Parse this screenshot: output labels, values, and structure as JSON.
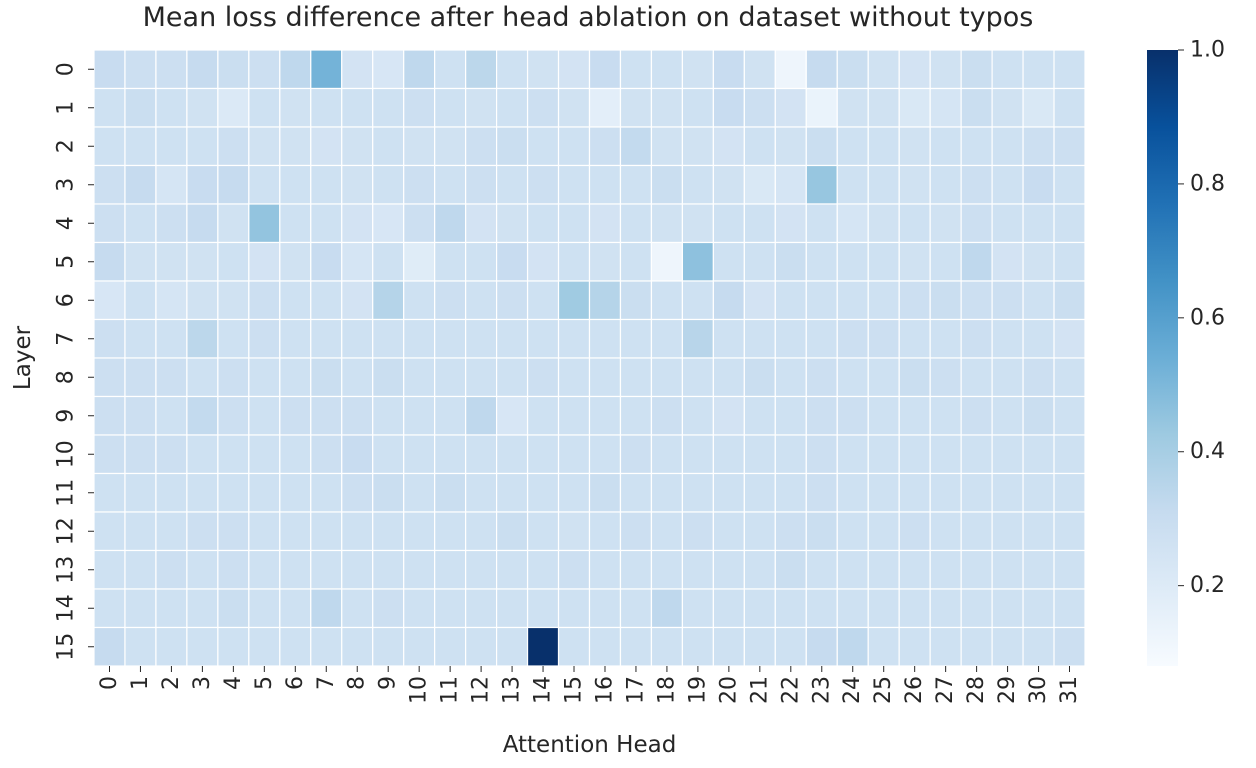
{
  "chart_data": {
    "type": "heatmap",
    "title": "Mean loss difference after head ablation on dataset without typos",
    "xlabel": "Attention Head",
    "ylabel": "Layer",
    "x_categories": [
      "0",
      "1",
      "2",
      "3",
      "4",
      "5",
      "6",
      "7",
      "8",
      "9",
      "10",
      "11",
      "12",
      "13",
      "14",
      "15",
      "16",
      "17",
      "18",
      "19",
      "20",
      "21",
      "22",
      "23",
      "24",
      "25",
      "26",
      "27",
      "28",
      "29",
      "30",
      "31"
    ],
    "y_categories": [
      "0",
      "1",
      "2",
      "3",
      "4",
      "5",
      "6",
      "7",
      "8",
      "9",
      "10",
      "11",
      "12",
      "13",
      "14",
      "15"
    ],
    "colormap": "Blues",
    "colors": [
      "#f7fbff",
      "#deebf7",
      "#c6dbef",
      "#9ecae1",
      "#6baed6",
      "#4292c6",
      "#2171b5",
      "#08519c",
      "#08306b"
    ],
    "vmin": 0.08,
    "vmax": 1.0,
    "colorbar_ticks": [
      "0.2",
      "0.4",
      "0.6",
      "0.8",
      "1.0"
    ],
    "colorbar_tick_values": [
      0.2,
      0.4,
      0.6,
      0.8,
      1.0
    ],
    "values": [
      [
        0.3,
        0.28,
        0.28,
        0.31,
        0.29,
        0.28,
        0.33,
        0.52,
        0.25,
        0.23,
        0.33,
        0.27,
        0.34,
        0.27,
        0.26,
        0.25,
        0.3,
        0.27,
        0.27,
        0.26,
        0.3,
        0.26,
        0.12,
        0.31,
        0.29,
        0.26,
        0.25,
        0.26,
        0.29,
        0.27,
        0.27,
        0.27
      ],
      [
        0.27,
        0.29,
        0.27,
        0.26,
        0.21,
        0.27,
        0.26,
        0.27,
        0.27,
        0.27,
        0.28,
        0.27,
        0.26,
        0.27,
        0.28,
        0.26,
        0.17,
        0.26,
        0.26,
        0.27,
        0.3,
        0.28,
        0.25,
        0.14,
        0.26,
        0.26,
        0.22,
        0.24,
        0.29,
        0.26,
        0.22,
        0.27
      ],
      [
        0.27,
        0.27,
        0.27,
        0.27,
        0.28,
        0.26,
        0.26,
        0.25,
        0.26,
        0.27,
        0.26,
        0.26,
        0.28,
        0.29,
        0.27,
        0.27,
        0.28,
        0.32,
        0.26,
        0.26,
        0.25,
        0.27,
        0.26,
        0.29,
        0.27,
        0.27,
        0.26,
        0.27,
        0.27,
        0.27,
        0.28,
        0.28
      ],
      [
        0.28,
        0.31,
        0.24,
        0.3,
        0.31,
        0.27,
        0.27,
        0.27,
        0.26,
        0.27,
        0.28,
        0.27,
        0.28,
        0.27,
        0.28,
        0.27,
        0.27,
        0.27,
        0.29,
        0.27,
        0.26,
        0.22,
        0.24,
        0.44,
        0.27,
        0.27,
        0.26,
        0.27,
        0.28,
        0.27,
        0.3,
        0.27
      ],
      [
        0.28,
        0.27,
        0.28,
        0.31,
        0.26,
        0.45,
        0.27,
        0.27,
        0.25,
        0.23,
        0.28,
        0.33,
        0.25,
        0.26,
        0.27,
        0.27,
        0.25,
        0.27,
        0.26,
        0.26,
        0.27,
        0.27,
        0.25,
        0.27,
        0.24,
        0.26,
        0.27,
        0.26,
        0.28,
        0.27,
        0.27,
        0.27
      ],
      [
        0.31,
        0.26,
        0.26,
        0.26,
        0.27,
        0.25,
        0.26,
        0.3,
        0.24,
        0.27,
        0.19,
        0.27,
        0.27,
        0.3,
        0.25,
        0.27,
        0.26,
        0.27,
        0.12,
        0.46,
        0.27,
        0.27,
        0.29,
        0.27,
        0.27,
        0.27,
        0.26,
        0.27,
        0.33,
        0.25,
        0.26,
        0.27
      ],
      [
        0.23,
        0.27,
        0.24,
        0.26,
        0.26,
        0.28,
        0.27,
        0.27,
        0.25,
        0.36,
        0.27,
        0.28,
        0.27,
        0.28,
        0.27,
        0.42,
        0.36,
        0.29,
        0.27,
        0.27,
        0.31,
        0.25,
        0.27,
        0.27,
        0.27,
        0.27,
        0.28,
        0.29,
        0.28,
        0.28,
        0.27,
        0.29
      ],
      [
        0.28,
        0.27,
        0.27,
        0.34,
        0.27,
        0.28,
        0.27,
        0.27,
        0.27,
        0.27,
        0.27,
        0.27,
        0.27,
        0.27,
        0.27,
        0.27,
        0.27,
        0.27,
        0.27,
        0.35,
        0.27,
        0.27,
        0.27,
        0.27,
        0.28,
        0.28,
        0.27,
        0.27,
        0.28,
        0.27,
        0.27,
        0.25
      ],
      [
        0.28,
        0.28,
        0.28,
        0.27,
        0.28,
        0.27,
        0.27,
        0.29,
        0.27,
        0.29,
        0.27,
        0.27,
        0.27,
        0.27,
        0.28,
        0.27,
        0.27,
        0.27,
        0.27,
        0.27,
        0.27,
        0.29,
        0.27,
        0.28,
        0.27,
        0.27,
        0.29,
        0.28,
        0.27,
        0.27,
        0.28,
        0.27
      ],
      [
        0.28,
        0.28,
        0.27,
        0.32,
        0.28,
        0.27,
        0.28,
        0.28,
        0.28,
        0.27,
        0.27,
        0.27,
        0.33,
        0.23,
        0.27,
        0.27,
        0.27,
        0.27,
        0.28,
        0.27,
        0.25,
        0.27,
        0.27,
        0.28,
        0.28,
        0.27,
        0.27,
        0.27,
        0.28,
        0.27,
        0.29,
        0.27
      ],
      [
        0.28,
        0.28,
        0.28,
        0.27,
        0.27,
        0.27,
        0.27,
        0.28,
        0.3,
        0.27,
        0.27,
        0.27,
        0.27,
        0.27,
        0.27,
        0.27,
        0.27,
        0.28,
        0.27,
        0.27,
        0.27,
        0.27,
        0.27,
        0.28,
        0.27,
        0.27,
        0.27,
        0.27,
        0.27,
        0.27,
        0.27,
        0.27
      ],
      [
        0.27,
        0.27,
        0.27,
        0.27,
        0.27,
        0.27,
        0.27,
        0.27,
        0.28,
        0.29,
        0.27,
        0.29,
        0.27,
        0.27,
        0.27,
        0.27,
        0.29,
        0.27,
        0.27,
        0.27,
        0.27,
        0.27,
        0.27,
        0.28,
        0.27,
        0.27,
        0.27,
        0.27,
        0.27,
        0.27,
        0.27,
        0.27
      ],
      [
        0.27,
        0.27,
        0.27,
        0.28,
        0.28,
        0.27,
        0.27,
        0.27,
        0.27,
        0.27,
        0.27,
        0.27,
        0.27,
        0.29,
        0.27,
        0.26,
        0.27,
        0.28,
        0.27,
        0.28,
        0.27,
        0.27,
        0.28,
        0.29,
        0.27,
        0.27,
        0.28,
        0.27,
        0.27,
        0.27,
        0.27,
        0.27
      ],
      [
        0.27,
        0.27,
        0.28,
        0.27,
        0.28,
        0.27,
        0.27,
        0.27,
        0.27,
        0.27,
        0.27,
        0.27,
        0.27,
        0.27,
        0.27,
        0.28,
        0.27,
        0.27,
        0.27,
        0.27,
        0.27,
        0.27,
        0.29,
        0.27,
        0.27,
        0.27,
        0.27,
        0.27,
        0.27,
        0.27,
        0.27,
        0.27
      ],
      [
        0.27,
        0.27,
        0.27,
        0.27,
        0.29,
        0.27,
        0.27,
        0.33,
        0.27,
        0.28,
        0.27,
        0.27,
        0.27,
        0.27,
        0.27,
        0.27,
        0.27,
        0.27,
        0.33,
        0.27,
        0.27,
        0.27,
        0.27,
        0.27,
        0.27,
        0.27,
        0.27,
        0.27,
        0.27,
        0.27,
        0.27,
        0.27
      ],
      [
        0.31,
        0.27,
        0.27,
        0.27,
        0.27,
        0.27,
        0.27,
        0.27,
        0.27,
        0.27,
        0.27,
        0.27,
        0.27,
        0.27,
        1.0,
        0.27,
        0.27,
        0.27,
        0.27,
        0.27,
        0.27,
        0.27,
        0.27,
        0.31,
        0.33,
        0.27,
        0.27,
        0.27,
        0.27,
        0.27,
        0.27,
        0.28
      ]
    ]
  }
}
